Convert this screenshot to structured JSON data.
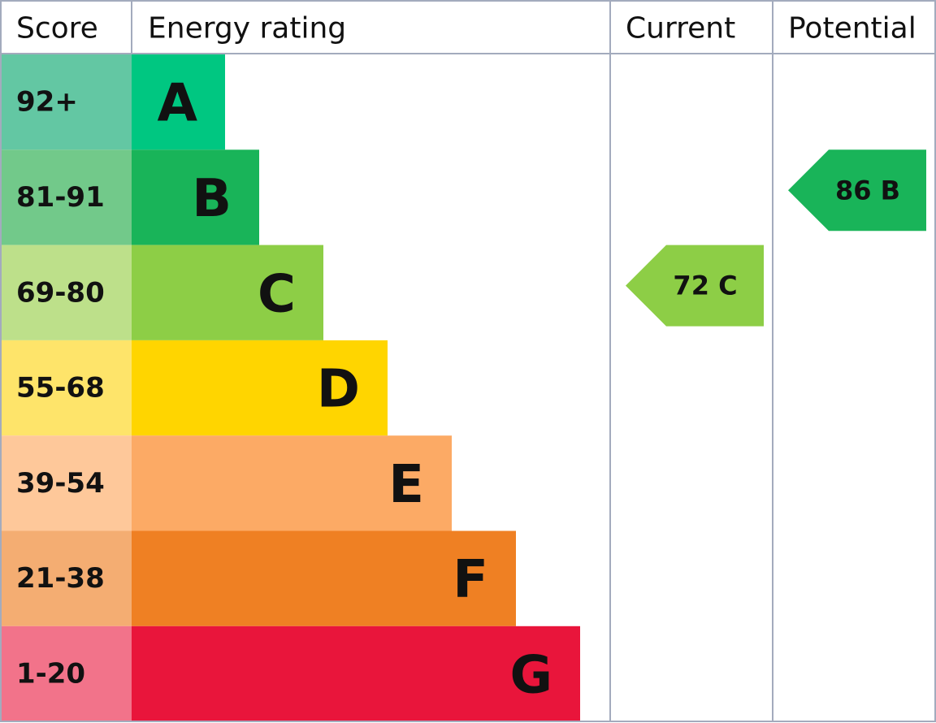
{
  "header": {
    "score": "Score",
    "rating": "Energy rating",
    "current": "Current",
    "potential": "Potential"
  },
  "bands": [
    {
      "score": "92+",
      "letter": "A",
      "color": "#00c781",
      "score_color": "#63c7a3"
    },
    {
      "score": "81-91",
      "letter": "B",
      "color": "#19b459",
      "score_color": "#72c98a"
    },
    {
      "score": "69-80",
      "letter": "C",
      "color": "#8dce46",
      "score_color": "#bde08a"
    },
    {
      "score": "55-68",
      "letter": "D",
      "color": "#ffd500",
      "score_color": "#fee46a"
    },
    {
      "score": "39-54",
      "letter": "E",
      "color": "#fcaa65",
      "score_color": "#fec89a"
    },
    {
      "score": "21-38",
      "letter": "F",
      "color": "#ef8023",
      "score_color": "#f4ad72"
    },
    {
      "score": "1-20",
      "letter": "G",
      "color": "#e9153b",
      "score_color": "#f2738a"
    }
  ],
  "current": {
    "label": "72 C"
  },
  "potential": {
    "label": "86 B"
  }
}
